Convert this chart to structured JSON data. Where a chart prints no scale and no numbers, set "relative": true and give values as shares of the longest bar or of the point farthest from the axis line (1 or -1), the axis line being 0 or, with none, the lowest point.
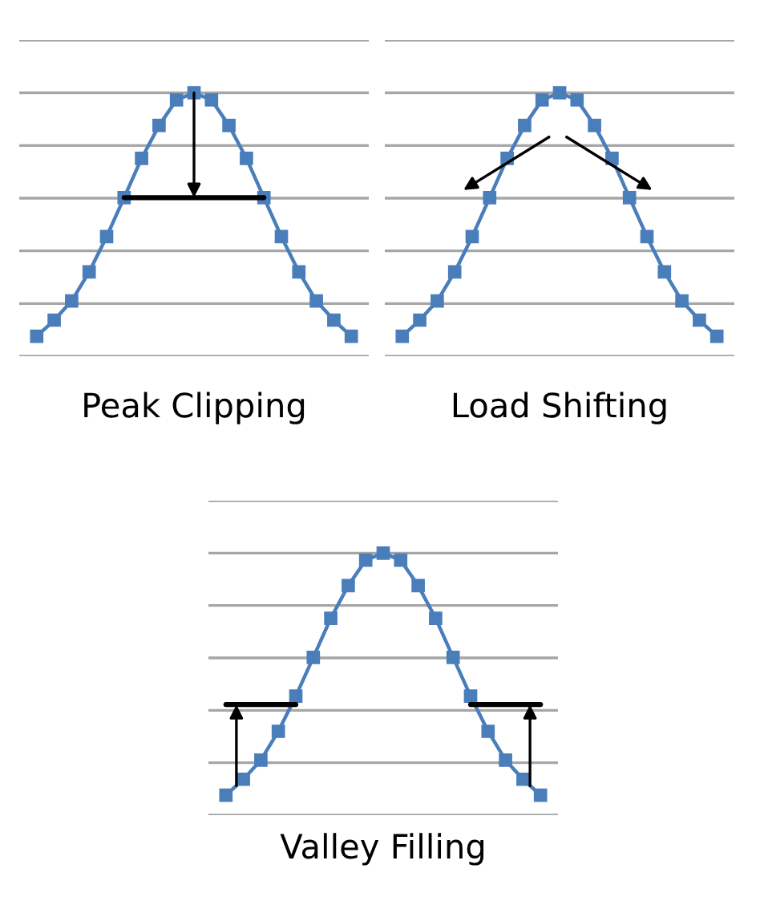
{
  "chart_data": [
    {
      "type": "line",
      "title": "Peak Clipping",
      "relative": true,
      "categories": [
        null,
        null,
        null,
        null,
        null,
        null,
        null,
        null,
        null,
        null,
        null,
        null,
        null,
        null,
        null,
        null,
        null,
        null,
        null
      ],
      "series": [
        {
          "color": "#4a7ebb",
          "values": [
            0.076,
            0.137,
            0.21,
            0.32,
            0.454,
            0.602,
            0.751,
            0.876,
            0.973,
            1,
            0.973,
            0.876,
            0.751,
            0.602,
            0.454,
            0.32,
            0.21,
            0.137,
            0.076
          ]
        },
        {
          "color": "#000000",
          "marker": "none",
          "values": [
            null,
            null,
            null,
            null,
            null,
            0.602,
            0.602,
            0.602,
            0.602,
            0.602,
            0.602,
            0.602,
            0.602,
            0.602,
            null,
            null,
            null,
            null,
            null
          ]
        }
      ],
      "marker": "square",
      "grid": "y"
    },
    {
      "type": "line",
      "title": "Load Shifting",
      "relative": true,
      "categories": [
        null,
        null,
        null,
        null,
        null,
        null,
        null,
        null,
        null,
        null,
        null,
        null,
        null,
        null,
        null,
        null,
        null,
        null,
        null
      ],
      "series": [
        {
          "color": "#4a7ebb",
          "values": [
            0.076,
            0.137,
            0.21,
            0.32,
            0.454,
            0.602,
            0.751,
            0.876,
            0.973,
            1,
            0.973,
            0.876,
            0.751,
            0.602,
            0.454,
            0.32,
            0.21,
            0.137,
            0.076
          ]
        }
      ],
      "marker": "square",
      "grid": "y"
    },
    {
      "type": "line",
      "title": "Valley Filling",
      "relative": true,
      "categories": [
        null,
        null,
        null,
        null,
        null,
        null,
        null,
        null,
        null,
        null,
        null,
        null,
        null,
        null,
        null,
        null,
        null,
        null,
        null
      ],
      "series": [
        {
          "color": "#4a7ebb",
          "values": [
            0.076,
            0.137,
            0.21,
            0.32,
            0.454,
            0.602,
            0.751,
            0.876,
            0.973,
            1,
            0.973,
            0.876,
            0.751,
            0.602,
            0.454,
            0.32,
            0.21,
            0.137,
            0.076
          ]
        },
        {
          "color": "#000000",
          "marker": "none",
          "values": [
            0.422,
            0.422,
            0.422,
            0.422,
            0.422,
            null,
            null,
            null,
            null,
            null,
            null,
            null,
            null,
            null,
            null,
            null,
            null,
            null,
            null
          ]
        },
        {
          "color": "#000000",
          "marker": "none",
          "values": [
            null,
            null,
            null,
            null,
            null,
            null,
            null,
            null,
            null,
            null,
            null,
            null,
            null,
            null,
            0.422,
            0.422,
            0.422,
            0.422,
            0.422
          ]
        }
      ],
      "marker": "square",
      "grid": "y"
    }
  ]
}
